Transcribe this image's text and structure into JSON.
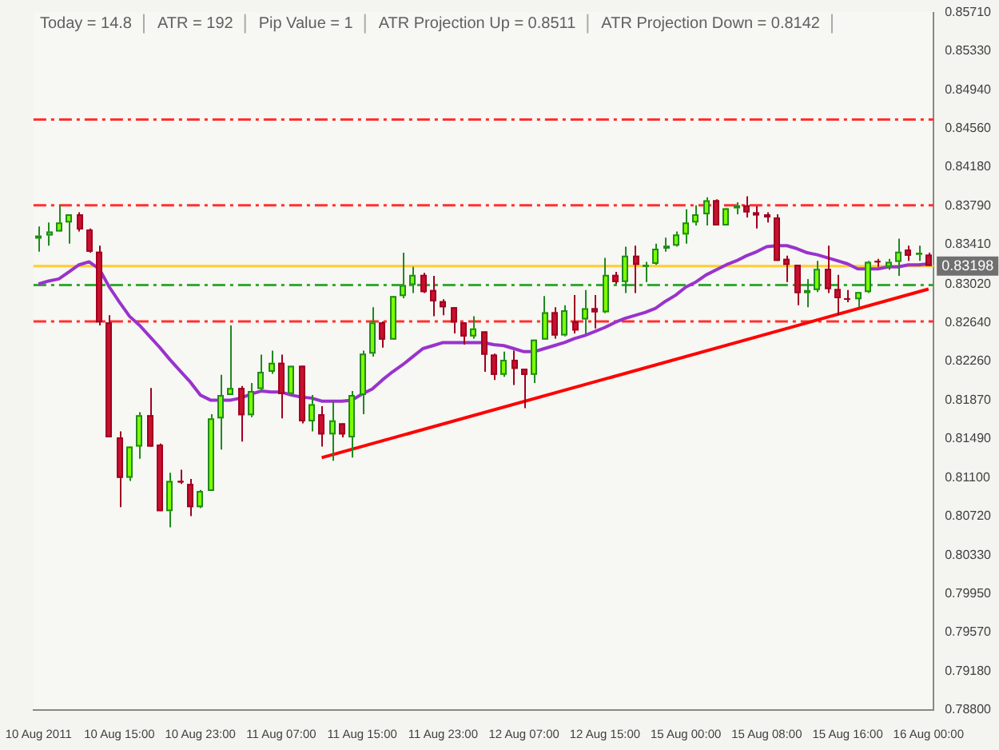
{
  "chart_data": {
    "type": "candlestick",
    "annotations": [
      "Today = 14.8",
      "ATR = 192",
      "Pip Value = 1",
      "ATR Projection Up = 0.8511",
      "ATR Projection Down = 0.8142"
    ],
    "categories": [
      "10 Aug 2011",
      null,
      null,
      null,
      null,
      null,
      null,
      null,
      "10 Aug 15:00",
      null,
      null,
      null,
      null,
      null,
      null,
      null,
      "10 Aug 23:00",
      null,
      null,
      null,
      null,
      null,
      null,
      null,
      "11 Aug 07:00",
      null,
      null,
      null,
      null,
      null,
      null,
      null,
      "11 Aug 15:00",
      null,
      null,
      null,
      null,
      null,
      null,
      null,
      "11 Aug 23:00",
      null,
      null,
      null,
      null,
      null,
      null,
      null,
      "12 Aug 07:00",
      null,
      null,
      null,
      null,
      null,
      null,
      null,
      "12 Aug 15:00",
      null,
      null,
      null,
      null,
      null,
      null,
      null,
      "15 Aug 00:00",
      null,
      null,
      null,
      null,
      null,
      null,
      null,
      "15 Aug 08:00",
      null,
      null,
      null,
      null,
      null,
      null,
      null,
      "15 Aug 16:00",
      null,
      null,
      null,
      null,
      null,
      null,
      null,
      "16 Aug 00:00"
    ],
    "ohlc": [
      [
        0.8347,
        0.8359,
        0.8334,
        0.835
      ],
      [
        0.835,
        0.8363,
        0.834,
        0.8354
      ],
      [
        0.8354,
        0.838,
        0.8354,
        0.8363
      ],
      [
        0.8363,
        0.8371,
        0.8342,
        0.8371
      ],
      [
        0.8371,
        0.8373,
        0.8354,
        0.8356
      ],
      [
        0.8356,
        0.8357,
        0.8333,
        0.8334
      ],
      [
        0.8334,
        0.834,
        0.8261,
        0.8264
      ],
      [
        0.8264,
        0.8271,
        0.815,
        0.815
      ],
      [
        0.815,
        0.8156,
        0.8081,
        0.811
      ],
      [
        0.811,
        0.8141,
        0.8107,
        0.8141
      ],
      [
        0.8141,
        0.8175,
        0.8129,
        0.8172
      ],
      [
        0.8172,
        0.8199,
        0.8141,
        0.8141
      ],
      [
        0.8143,
        0.8144,
        0.8077,
        0.8077
      ],
      [
        0.8077,
        0.8115,
        0.8061,
        0.8107
      ],
      [
        0.8107,
        0.8118,
        0.8104,
        0.8106
      ],
      [
        0.8104,
        0.8109,
        0.8072,
        0.8081
      ],
      [
        0.8081,
        0.8098,
        0.808,
        0.8097
      ],
      [
        0.8097,
        0.8173,
        0.8097,
        0.8169
      ],
      [
        0.8169,
        0.8212,
        0.8138,
        0.8192
      ],
      [
        0.8192,
        0.8261,
        0.8192,
        0.8199
      ],
      [
        0.8199,
        0.8201,
        0.8146,
        0.8172
      ],
      [
        0.8172,
        0.8204,
        0.817,
        0.8196
      ],
      [
        0.8198,
        0.8232,
        0.8196,
        0.8215
      ],
      [
        0.8215,
        0.8236,
        0.8213,
        0.8224
      ],
      [
        0.8224,
        0.8232,
        0.8169,
        0.8193
      ],
      [
        0.8193,
        0.8221,
        0.8192,
        0.8221
      ],
      [
        0.8221,
        0.8221,
        0.8164,
        0.8166
      ],
      [
        0.8166,
        0.8192,
        0.8156,
        0.8183
      ],
      [
        0.8173,
        0.8181,
        0.8141,
        0.8153
      ],
      [
        0.8153,
        0.8186,
        0.8127,
        0.8167
      ],
      [
        0.8164,
        0.8164,
        0.815,
        0.8153
      ],
      [
        0.815,
        0.8196,
        0.813,
        0.8192
      ],
      [
        0.8192,
        0.8236,
        0.8173,
        0.8233
      ],
      [
        0.8233,
        0.8279,
        0.823,
        0.8264
      ],
      [
        0.8264,
        0.8265,
        0.8239,
        0.8247
      ],
      [
        0.8247,
        0.829,
        0.8247,
        0.829
      ],
      [
        0.829,
        0.8333,
        0.8288,
        0.8301
      ],
      [
        0.8301,
        0.8319,
        0.8293,
        0.8311
      ],
      [
        0.8311,
        0.8313,
        0.8293,
        0.8294
      ],
      [
        0.8296,
        0.831,
        0.827,
        0.8285
      ],
      [
        0.8285,
        0.8287,
        0.8271,
        0.8279
      ],
      [
        0.8279,
        0.8279,
        0.8253,
        0.8264
      ],
      [
        0.8264,
        0.8264,
        0.8242,
        0.825
      ],
      [
        0.825,
        0.827,
        0.8248,
        0.8258
      ],
      [
        0.8255,
        0.8255,
        0.8215,
        0.8232
      ],
      [
        0.8232,
        0.8233,
        0.8207,
        0.8212
      ],
      [
        0.8212,
        0.8235,
        0.821,
        0.8227
      ],
      [
        0.8227,
        0.8236,
        0.8202,
        0.8218
      ],
      [
        0.8218,
        0.8218,
        0.8179,
        0.8212
      ],
      [
        0.8212,
        0.8247,
        0.8204,
        0.8247
      ],
      [
        0.8247,
        0.829,
        0.8247,
        0.8274
      ],
      [
        0.8274,
        0.8279,
        0.8248,
        0.8251
      ],
      [
        0.8251,
        0.8281,
        0.825,
        0.8276
      ],
      [
        0.8265,
        0.8291,
        0.8253,
        0.8256
      ],
      [
        0.8267,
        0.8296,
        0.8253,
        0.8278
      ],
      [
        0.8278,
        0.8291,
        0.8258,
        0.8274
      ],
      [
        0.8274,
        0.8328,
        0.8273,
        0.8311
      ],
      [
        0.8311,
        0.8314,
        0.8302,
        0.8304
      ],
      [
        0.8304,
        0.8339,
        0.8293,
        0.833
      ],
      [
        0.833,
        0.834,
        0.8293,
        0.8321
      ],
      [
        0.8319,
        0.8324,
        0.8304,
        0.8321
      ],
      [
        0.8322,
        0.8342,
        0.8321,
        0.8337
      ],
      [
        0.8337,
        0.8348,
        0.8334,
        0.834
      ],
      [
        0.834,
        0.8354,
        0.8339,
        0.8351
      ],
      [
        0.8351,
        0.8376,
        0.8342,
        0.8363
      ],
      [
        0.8363,
        0.838,
        0.836,
        0.8371
      ],
      [
        0.8371,
        0.8388,
        0.836,
        0.8385
      ],
      [
        0.8385,
        0.8386,
        0.836,
        0.836
      ],
      [
        0.836,
        0.8377,
        0.836,
        0.8377
      ],
      [
        0.8377,
        0.8383,
        0.8371,
        0.838
      ],
      [
        0.838,
        0.8389,
        0.8368,
        0.8373
      ],
      [
        0.8373,
        0.8379,
        0.8357,
        0.837
      ],
      [
        0.8371,
        0.8373,
        0.8363,
        0.8368
      ],
      [
        0.8368,
        0.8371,
        0.8325,
        0.8325
      ],
      [
        0.8327,
        0.833,
        0.8304,
        0.8321
      ],
      [
        0.8321,
        0.8321,
        0.8281,
        0.8293
      ],
      [
        0.8293,
        0.8307,
        0.8279,
        0.8296
      ],
      [
        0.8296,
        0.8325,
        0.8294,
        0.8317
      ],
      [
        0.8317,
        0.834,
        0.8293,
        0.8297
      ],
      [
        0.8297,
        0.8311,
        0.8271,
        0.8288
      ],
      [
        0.8288,
        0.8296,
        0.8284,
        0.8287
      ],
      [
        0.8287,
        0.8294,
        0.8279,
        0.8294
      ],
      [
        0.8294,
        0.8325,
        0.8293,
        0.8324
      ],
      [
        0.8325,
        0.8327,
        0.8319,
        0.8324
      ],
      [
        0.8319,
        0.8327,
        0.8316,
        0.8324
      ],
      [
        0.8324,
        0.8347,
        0.831,
        0.8334
      ],
      [
        0.8336,
        0.834,
        0.8325,
        0.833
      ],
      [
        0.8331,
        0.834,
        0.8325,
        0.8333
      ],
      [
        0.8331,
        0.8333,
        0.832,
        0.832
      ]
    ],
    "series": [
      {
        "type": "line",
        "color": "#9933cc",
        "values": [
          0.8302,
          0.8305,
          0.8307,
          0.8314,
          0.8321,
          0.8324,
          0.8317,
          0.8299,
          0.8284,
          0.827,
          0.8261,
          0.825,
          0.8239,
          0.8227,
          0.8216,
          0.8205,
          0.8192,
          0.8187,
          0.8187,
          0.8187,
          0.8189,
          0.8193,
          0.8196,
          0.8195,
          0.8195,
          0.8192,
          0.819,
          0.8189,
          0.8186,
          0.8186,
          0.8186,
          0.8187,
          0.8193,
          0.8198,
          0.8207,
          0.8215,
          0.8222,
          0.823,
          0.8238,
          0.8241,
          0.8244,
          0.8244,
          0.8244,
          0.8244,
          0.8244,
          0.8242,
          0.8241,
          0.8238,
          0.8235,
          0.8235,
          0.8238,
          0.8241,
          0.8244,
          0.8248,
          0.8251,
          0.8255,
          0.8259,
          0.8264,
          0.8268,
          0.8271,
          0.8274,
          0.8278,
          0.8285,
          0.8291,
          0.8299,
          0.8304,
          0.8311,
          0.8316,
          0.8321,
          0.8325,
          0.833,
          0.8334,
          0.8339,
          0.834,
          0.834,
          0.8337,
          0.8333,
          0.8331,
          0.8328,
          0.8325,
          0.8322,
          0.8317,
          0.8317,
          0.8317,
          0.8319,
          0.8319,
          0.8321,
          0.8321,
          0.8322
        ]
      },
      {
        "type": "line",
        "color": "#ff0000",
        "values": [
          null,
          null,
          null,
          null,
          null,
          null,
          null,
          null,
          null,
          null,
          null,
          null,
          null,
          null,
          null,
          null,
          null,
          null,
          null,
          null,
          null,
          null,
          null,
          null,
          null,
          null,
          null,
          null,
          0.813,
          null,
          null,
          null,
          null,
          null,
          null,
          null,
          null,
          null,
          null,
          null,
          null,
          null,
          null,
          null,
          null,
          null,
          null,
          null,
          null,
          null,
          null,
          null,
          null,
          null,
          null,
          null,
          null,
          null,
          null,
          null,
          null,
          null,
          null,
          null,
          null,
          null,
          null,
          null,
          null,
          null,
          null,
          null,
          null,
          null,
          null,
          null,
          null,
          null,
          null,
          null,
          null,
          null,
          null,
          null,
          null,
          null,
          null,
          null,
          0.8297
        ]
      }
    ],
    "ylim": [
      0.788,
      0.8571
    ],
    "yticks": [
      {
        "value": 0.8571,
        "label": "0.85710"
      },
      {
        "value": 0.8533,
        "label": "0.85330"
      },
      {
        "value": 0.8494,
        "label": "0.84940"
      },
      {
        "value": 0.8456,
        "label": "0.84560"
      },
      {
        "value": 0.8418,
        "label": "0.84180"
      },
      {
        "value": 0.8379,
        "label": "0.83790"
      },
      {
        "value": 0.8341,
        "label": "0.83410"
      },
      {
        "value": 0.8302,
        "label": "0.83020"
      },
      {
        "value": 0.8264,
        "label": "0.82640"
      },
      {
        "value": 0.8226,
        "label": "0.82260"
      },
      {
        "value": 0.8187,
        "label": "0.81870"
      },
      {
        "value": 0.8149,
        "label": "0.81490"
      },
      {
        "value": 0.811,
        "label": "0.81100"
      },
      {
        "value": 0.8072,
        "label": "0.80720"
      },
      {
        "value": 0.8033,
        "label": "0.80330"
      },
      {
        "value": 0.7995,
        "label": "0.79950"
      },
      {
        "value": 0.7957,
        "label": "0.79570"
      },
      {
        "value": 0.7918,
        "label": "0.79180"
      },
      {
        "value": 0.788,
        "label": "0.78800"
      }
    ],
    "ref_lines": [
      {
        "axis": "y",
        "value": 0.8465,
        "color": "#ff3030",
        "line_style": "dashed"
      },
      {
        "axis": "y",
        "value": 0.838,
        "color": "#ff3030",
        "line_style": "dashed"
      },
      {
        "axis": "y",
        "value": 0.8265,
        "color": "#ff3030",
        "line_style": "dashed"
      },
      {
        "axis": "y",
        "value": 0.8301,
        "color": "#33aa33",
        "line_style": "dashed"
      },
      {
        "axis": "y",
        "value": 0.83198,
        "label": "0.83198",
        "color": "#ffcc33",
        "line_style": "solid"
      }
    ],
    "grid": false,
    "legend": false
  }
}
